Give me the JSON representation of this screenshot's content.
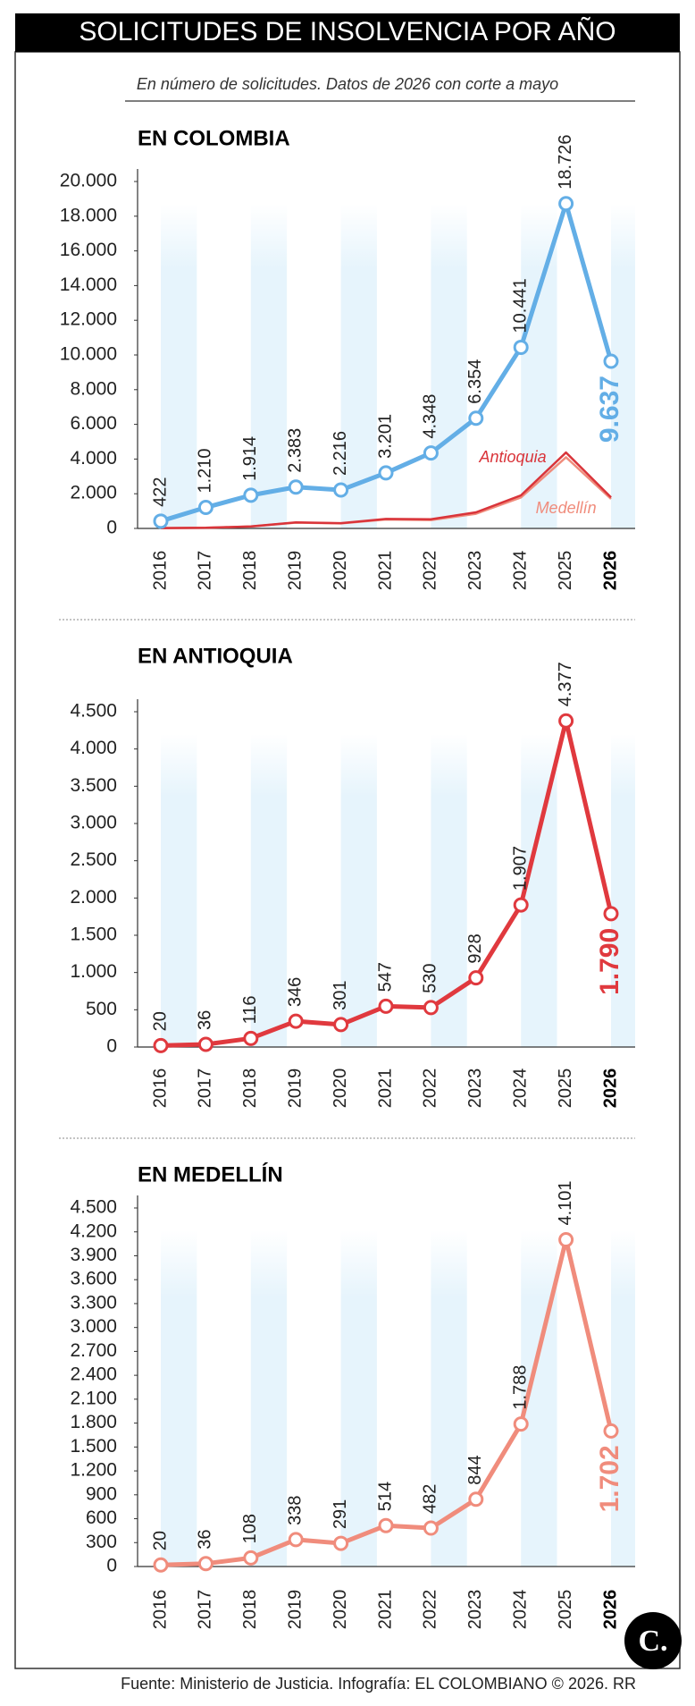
{
  "title": "SOLICITUDES DE INSOLVENCIA POR AÑO",
  "subtitle": "En número de solicitudes. Datos de 2026 con corte a mayo",
  "source": "Fuente: Ministerio de Justicia. Infografía: EL COLOMBIANO © 2026. RR",
  "logo": "C.",
  "chart_data": [
    {
      "type": "line",
      "title": "EN COLOMBIA",
      "categories": [
        "2016",
        "2017",
        "2018",
        "2019",
        "2020",
        "2021",
        "2022",
        "2023",
        "2024",
        "2025",
        "2026"
      ],
      "ylim": [
        0,
        20000
      ],
      "yticks": [
        0,
        {
          "value": 2000,
          "label": "2.000"
        },
        {
          "value": 4000,
          "label": "4.000"
        },
        {
          "value": 6000,
          "label": "6.000"
        },
        {
          "value": 8000,
          "label": "8.000"
        },
        {
          "value": 10000,
          "label": "10.000"
        },
        {
          "value": 12000,
          "label": "12.000"
        },
        {
          "value": 14000,
          "label": "14.000"
        },
        {
          "value": 16000,
          "label": "16.000"
        },
        {
          "value": 18000,
          "label": "18.000"
        },
        {
          "value": 20000,
          "label": "20.000"
        }
      ],
      "series": [
        {
          "color": "#63aee6",
          "values": [
            422,
            1210,
            1914,
            2383,
            2216,
            3201,
            4348,
            6354,
            10441,
            18726,
            9637
          ],
          "value_labels": [
            "422",
            "1.210",
            "1.914",
            "2.383",
            "2.216",
            "3.201",
            "4.348",
            "6.354",
            "10.441",
            "18.726",
            "9.637"
          ]
        },
        {
          "name": "Antioquia",
          "color": "#d9343a",
          "values": [
            20,
            36,
            116,
            346,
            301,
            547,
            530,
            928,
            1907,
            4377,
            1790
          ]
        },
        {
          "name": "Medellín",
          "color": "#f08c7c",
          "values": [
            20,
            36,
            108,
            338,
            291,
            514,
            482,
            844,
            1788,
            4101,
            1702
          ]
        }
      ]
    },
    {
      "type": "line",
      "title": "EN ANTIOQUIA",
      "categories": [
        "2016",
        "2017",
        "2018",
        "2019",
        "2020",
        "2021",
        "2022",
        "2023",
        "2024",
        "2025",
        "2026"
      ],
      "ylim": [
        0,
        4500
      ],
      "yticks": [
        0,
        500,
        {
          "value": 1000,
          "label": "1.000"
        },
        {
          "value": 1500,
          "label": "1.500"
        },
        {
          "value": 2000,
          "label": "2.000"
        },
        {
          "value": 2500,
          "label": "2.500"
        },
        {
          "value": 3000,
          "label": "3.000"
        },
        {
          "value": 3500,
          "label": "3.500"
        },
        {
          "value": 4000,
          "label": "4.000"
        },
        {
          "value": 4500,
          "label": "4.500"
        }
      ],
      "series": [
        {
          "color": "#e0393e",
          "values": [
            20,
            36,
            116,
            346,
            301,
            547,
            530,
            928,
            1907,
            4377,
            1790
          ],
          "value_labels": [
            "20",
            "36",
            "116",
            "346",
            "301",
            "547",
            "530",
            "928",
            "1.907",
            "4.377",
            "1.790"
          ]
        }
      ]
    },
    {
      "type": "line",
      "title": "EN MEDELLÍN",
      "categories": [
        "2016",
        "2017",
        "2018",
        "2019",
        "2020",
        "2021",
        "2022",
        "2023",
        "2024",
        "2025",
        "2026"
      ],
      "ylim": [
        0,
        4500
      ],
      "yticks": [
        0,
        300,
        600,
        900,
        {
          "value": 1200,
          "label": "1.200"
        },
        {
          "value": 1500,
          "label": "1.500"
        },
        {
          "value": 1800,
          "label": "1.800"
        },
        {
          "value": 2100,
          "label": "2.100"
        },
        {
          "value": 2400,
          "label": "2.400"
        },
        {
          "value": 2700,
          "label": "2.700"
        },
        {
          "value": 3000,
          "label": "3.000"
        },
        {
          "value": 3300,
          "label": "3.300"
        },
        {
          "value": 3600,
          "label": "3.600"
        },
        {
          "value": 3900,
          "label": "3.900"
        },
        {
          "value": 4200,
          "label": "4.200"
        },
        {
          "value": 4500,
          "label": "4.500"
        }
      ],
      "series": [
        {
          "color": "#f08c7c",
          "values": [
            20,
            36,
            108,
            338,
            291,
            514,
            482,
            844,
            1788,
            4101,
            1702
          ],
          "value_labels": [
            "20",
            "36",
            "108",
            "338",
            "291",
            "514",
            "482",
            "844",
            "1.788",
            "4.101",
            "1.702"
          ]
        }
      ]
    }
  ]
}
